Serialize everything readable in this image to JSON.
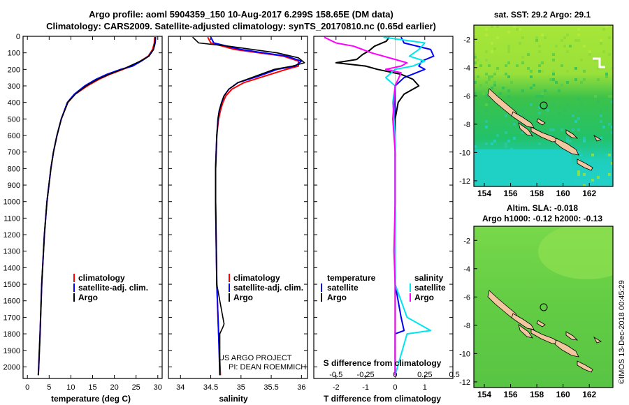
{
  "header": {
    "title_line1": "Argo profile: aoml 5904359_150 10-Aug-2017 6.299S 158.65E (DM data)",
    "title_line2": "Climatology: CARS2009. Satellite-adjusted climatology: synTS_20170810.nc (0.65d earlier)"
  },
  "colors": {
    "climatology": "#ff0000",
    "satellite": "#0000ff",
    "argo": "#000000",
    "sat_salinity": "#00e5ee",
    "argo_salinity": "#ff00ff"
  },
  "chart_data": [
    {
      "type": "line",
      "name": "temperature",
      "xlabel": "temperature (deg C)",
      "xlim": [
        -1,
        31
      ],
      "xticks": [
        "0",
        "5",
        "10",
        "15",
        "20",
        "25",
        "30"
      ],
      "ylim": [
        2070,
        0
      ],
      "yticks": [
        "0",
        "100",
        "200",
        "300",
        "400",
        "500",
        "600",
        "700",
        "800",
        "900",
        "1000",
        "1100",
        "1200",
        "1300",
        "1400",
        "1500",
        "1600",
        "1700",
        "1800",
        "1900",
        "2000"
      ],
      "legend": [
        "climatology",
        "satellite-adj. clim.",
        "Argo"
      ],
      "series": [
        {
          "name": "climatology",
          "depth": [
            5,
            40,
            80,
            120,
            150,
            180,
            200,
            230,
            260,
            300,
            350,
            400,
            500,
            600,
            700,
            800,
            1000,
            1200,
            1500,
            1800,
            2000,
            2050
          ],
          "values": [
            29.3,
            29.2,
            28.8,
            27.8,
            26.0,
            24.0,
            22.0,
            19.0,
            16.5,
            13.8,
            11.0,
            9.3,
            7.8,
            6.8,
            6.0,
            5.4,
            4.5,
            3.9,
            3.3,
            2.9,
            2.6,
            2.5
          ]
        },
        {
          "name": "satellite-adj. clim.",
          "depth": [
            5,
            40,
            80,
            120,
            150,
            180,
            200,
            230,
            260,
            300,
            350,
            400,
            500,
            600,
            700,
            800,
            1000,
            1200,
            1500,
            1800,
            2000,
            2050
          ],
          "values": [
            29.5,
            29.4,
            29.0,
            27.9,
            26.2,
            24.2,
            21.5,
            18.3,
            15.8,
            13.2,
            10.8,
            9.2,
            7.8,
            6.8,
            6.0,
            5.4,
            4.5,
            3.9,
            3.3,
            2.9,
            2.6,
            2.5
          ]
        },
        {
          "name": "Argo",
          "depth": [
            5,
            40,
            80,
            120,
            150,
            180,
            200,
            230,
            260,
            300,
            350,
            400,
            500,
            600,
            700,
            800,
            1000,
            1200,
            1500,
            1800,
            2000,
            2050
          ],
          "values": [
            29.4,
            29.3,
            29.0,
            28.0,
            26.0,
            23.5,
            21.8,
            18.8,
            16.2,
            13.5,
            11.0,
            9.3,
            7.8,
            6.8,
            6.0,
            5.4,
            4.5,
            3.9,
            3.3,
            2.9,
            2.6,
            2.5
          ]
        }
      ]
    },
    {
      "type": "line",
      "name": "salinity",
      "xlabel": "salinity",
      "xlim": [
        33.8,
        36.1
      ],
      "xticks": [
        "34",
        "34.5",
        "35",
        "35.5",
        "36"
      ],
      "ylim": [
        2070,
        0
      ],
      "legend": [
        "climatology",
        "satellite-adj. clim.",
        "Argo"
      ],
      "series": [
        {
          "name": "climatology",
          "depth": [
            5,
            40,
            80,
            120,
            150,
            180,
            200,
            240,
            280,
            320,
            360,
            400,
            450,
            500,
            600,
            800,
            1000,
            1500,
            1800,
            2050
          ],
          "values": [
            34.45,
            34.5,
            34.9,
            35.7,
            35.95,
            35.95,
            35.75,
            35.4,
            35.05,
            34.85,
            34.75,
            34.7,
            34.66,
            34.63,
            34.6,
            34.58,
            34.58,
            34.6,
            34.63,
            34.66
          ]
        },
        {
          "name": "satellite-adj. clim.",
          "depth": [
            5,
            40,
            80,
            120,
            150,
            180,
            200,
            240,
            280,
            320,
            360,
            400,
            450,
            500,
            600,
            800,
            1000,
            1500,
            1800,
            2050
          ],
          "values": [
            34.5,
            34.55,
            35.0,
            35.75,
            36.0,
            35.9,
            35.6,
            35.3,
            34.95,
            34.8,
            34.72,
            34.68,
            34.64,
            34.62,
            34.6,
            34.58,
            34.58,
            34.6,
            34.63,
            34.65
          ]
        },
        {
          "name": "Argo",
          "depth": [
            5,
            40,
            60,
            100,
            130,
            160,
            180,
            200,
            240,
            280,
            320,
            360,
            400,
            450,
            500,
            600,
            800,
            1000,
            1500,
            1740,
            1760,
            1800,
            2050
          ],
          "values": [
            34.2,
            34.3,
            34.8,
            35.6,
            35.95,
            36.05,
            35.85,
            35.55,
            35.25,
            34.95,
            34.8,
            34.72,
            34.68,
            34.64,
            34.62,
            34.6,
            34.58,
            34.58,
            34.6,
            34.72,
            34.7,
            34.65,
            34.65
          ]
        }
      ]
    },
    {
      "type": "line",
      "name": "difference from climatology",
      "xlabel": "T difference from climatology",
      "xlabel_top": "S difference from climatology",
      "xlim": [
        -2.75,
        1.95
      ],
      "xticks": [
        "-2",
        "-1",
        "0",
        "1"
      ],
      "xticks_top": [
        "-0.5",
        "-0.25",
        "0",
        "0.25",
        "0.5"
      ],
      "ylim": [
        2070,
        0
      ],
      "legend_left_title": "temperature",
      "legend_right_title": "salinity",
      "legend_left": [
        "satellite",
        "Argo"
      ],
      "legend_right": [
        "satellite",
        "Argo"
      ],
      "series": [
        {
          "name": "T satellite",
          "depth": [
            5,
            40,
            80,
            120,
            150,
            180,
            200,
            250,
            300,
            400,
            500,
            700,
            1000,
            1500,
            1700,
            1780,
            1800,
            2050
          ],
          "values": [
            0.2,
            0.3,
            1.2,
            1.3,
            0.9,
            0.8,
            1.0,
            0.3,
            0.0,
            0.0,
            0.0,
            0.0,
            0.0,
            0.0,
            0.2,
            0.3,
            0.0,
            0.0
          ]
        },
        {
          "name": "T Argo",
          "depth": [
            5,
            30,
            60,
            90,
            110,
            140,
            160,
            180,
            200,
            230,
            260,
            300,
            350,
            400,
            500,
            700,
            1000,
            1500,
            2050
          ],
          "values": [
            -0.2,
            -0.3,
            -0.7,
            -0.9,
            -1.1,
            -1.3,
            -2.0,
            -1.0,
            -0.6,
            0.2,
            0.6,
            0.8,
            0.3,
            0.1,
            0.0,
            0.0,
            0.0,
            0.0,
            0.0
          ]
        },
        {
          "name": "S satellite",
          "depth": [
            5,
            40,
            80,
            120,
            150,
            180,
            200,
            250,
            300,
            400,
            600,
            1000,
            1500,
            1700,
            1780,
            1800,
            2050
          ],
          "values": [
            -0.1,
            0.25,
            0.2,
            0.12,
            0.25,
            0.15,
            0.0,
            -0.08,
            0.0,
            -0.02,
            0.0,
            0.0,
            0.0,
            0.1,
            0.3,
            0.1,
            0.0
          ]
        },
        {
          "name": "S Argo",
          "depth": [
            5,
            40,
            60,
            100,
            140,
            160,
            180,
            200,
            220,
            300,
            500,
            700,
            1000,
            1300,
            1500,
            1800,
            2050
          ],
          "values": [
            -0.6,
            -0.5,
            -0.35,
            -0.2,
            0.0,
            0.1,
            0.05,
            -0.08,
            0.05,
            0.0,
            -0.02,
            0.0,
            0.0,
            -0.01,
            0.0,
            0.0,
            0.0
          ]
        }
      ]
    }
  ],
  "maps": {
    "sst": {
      "title": "sat. SST: 29.2 Argo: 29.1",
      "yticks": [
        "-2",
        "-4",
        "-6",
        "-8",
        "-10",
        "-12"
      ],
      "xticks": [
        "154",
        "156",
        "158",
        "160",
        "162"
      ]
    },
    "sla": {
      "title_line1": "Altim. SLA: -0.018",
      "title_line2": "Argo h1000: -0.12 h2000: -0.13",
      "yticks": [
        "-2",
        "-4",
        "-6",
        "-8",
        "-10",
        "-12"
      ],
      "xticks": [
        "154",
        "156",
        "158",
        "160",
        "162"
      ]
    }
  },
  "credits": {
    "line1": "US ARGO PROJECT",
    "line2": "PI: DEAN ROEMMICH",
    "stamp": "©IMOS 13-Dec-2018 00:45:29"
  }
}
